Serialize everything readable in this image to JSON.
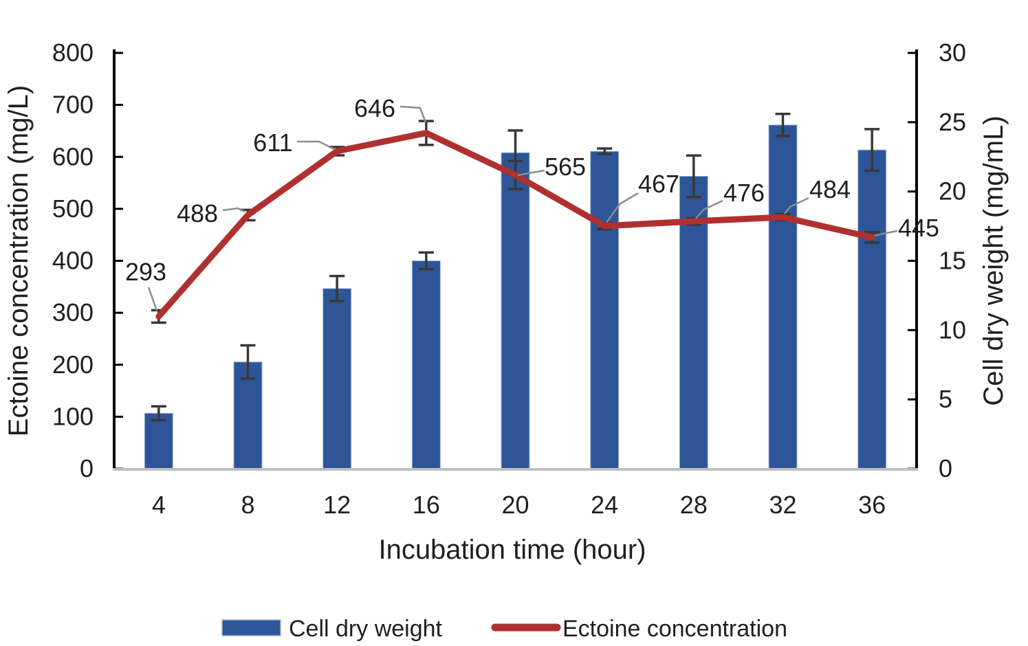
{
  "chart_data": {
    "type": "combo-bar-line",
    "categories": [
      4,
      8,
      12,
      16,
      20,
      24,
      28,
      32,
      36
    ],
    "xlabel": "Incubation time (hour)",
    "y_left": {
      "label": "Ectoine concentration (mg/L)",
      "min": 0,
      "max": 800,
      "tick_step": 100,
      "ticks": [
        "0",
        "100",
        "200",
        "300",
        "400",
        "500",
        "600",
        "700",
        "800"
      ]
    },
    "y_right": {
      "label": "Cell dry weight (mg/mL)",
      "min": 0,
      "max": 30,
      "tick_step": 5,
      "ticks": [
        "0",
        "5",
        "10",
        "15",
        "20",
        "25",
        "30"
      ]
    },
    "series": [
      {
        "name": "Cell dry weight",
        "type": "bar",
        "axis": "right",
        "color": "#2D5597",
        "values": [
          4.0,
          7.7,
          13.0,
          15.0,
          22.8,
          22.9,
          21.1,
          24.8,
          23.0
        ],
        "errors": [
          0.5,
          1.2,
          0.9,
          0.6,
          1.6,
          0.2,
          1.5,
          0.8,
          1.5
        ]
      },
      {
        "name": "Ectoine concentration",
        "type": "line",
        "axis": "left",
        "color": "#B03030",
        "values": [
          293,
          488,
          611,
          646,
          565,
          467,
          476,
          484,
          445
        ],
        "errors": [
          12,
          10,
          8,
          23,
          27,
          6,
          6,
          6,
          10
        ],
        "data_labels": [
          "293",
          "488",
          "611",
          "646",
          "565",
          "467",
          "476",
          "484",
          "445"
        ]
      }
    ],
    "legend_position": "bottom",
    "grid": false,
    "colors": {
      "axis": "#000000",
      "baseline": "#bfbfbf",
      "error_bar": "#383838",
      "leader_line": "#8c8c8c",
      "text": "#1f1f1f",
      "bar_edge": "#9FB6DC"
    }
  }
}
